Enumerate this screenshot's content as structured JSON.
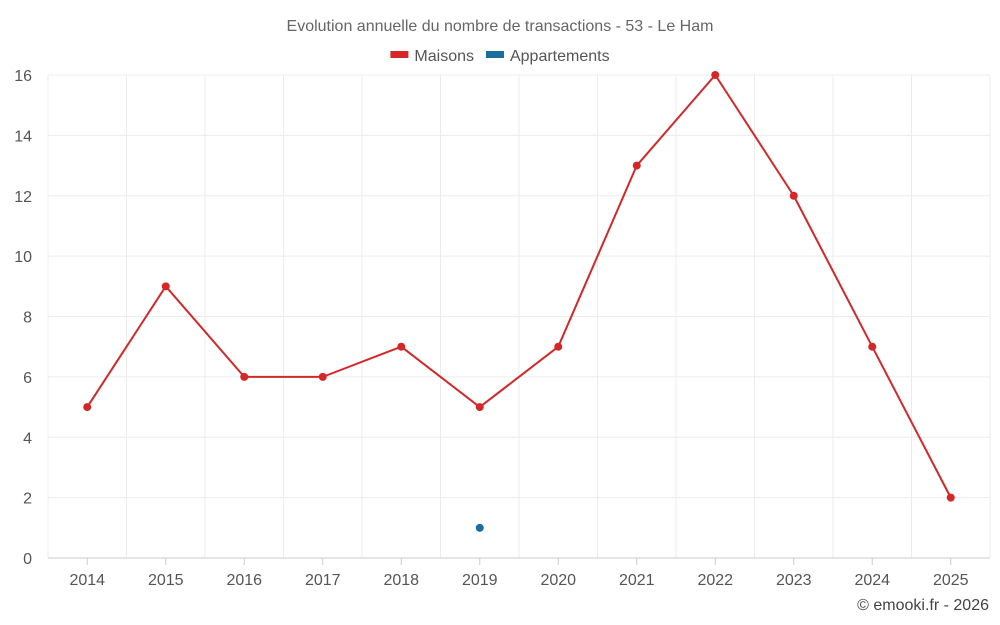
{
  "chart_data": {
    "type": "line",
    "title": "Evolution annuelle du nombre de transactions - 53 - Le Ham",
    "categories": [
      "2014",
      "2015",
      "2016",
      "2017",
      "2018",
      "2019",
      "2020",
      "2021",
      "2022",
      "2023",
      "2024",
      "2025"
    ],
    "ylim": [
      0,
      16
    ],
    "yticks": [
      0,
      2,
      4,
      6,
      8,
      10,
      12,
      14,
      16
    ],
    "grid": true,
    "legend_position": "top-center",
    "series": [
      {
        "name": "Maisons",
        "color": "#d62728",
        "values": [
          5,
          9,
          6,
          6,
          7,
          5,
          7,
          13,
          16,
          12,
          7,
          2
        ]
      },
      {
        "name": "Appartements",
        "color": "#1a6e9f",
        "values": [
          null,
          null,
          null,
          null,
          null,
          1,
          null,
          null,
          null,
          null,
          null,
          null
        ]
      }
    ]
  },
  "credit": "© emooki.fr - 2026"
}
